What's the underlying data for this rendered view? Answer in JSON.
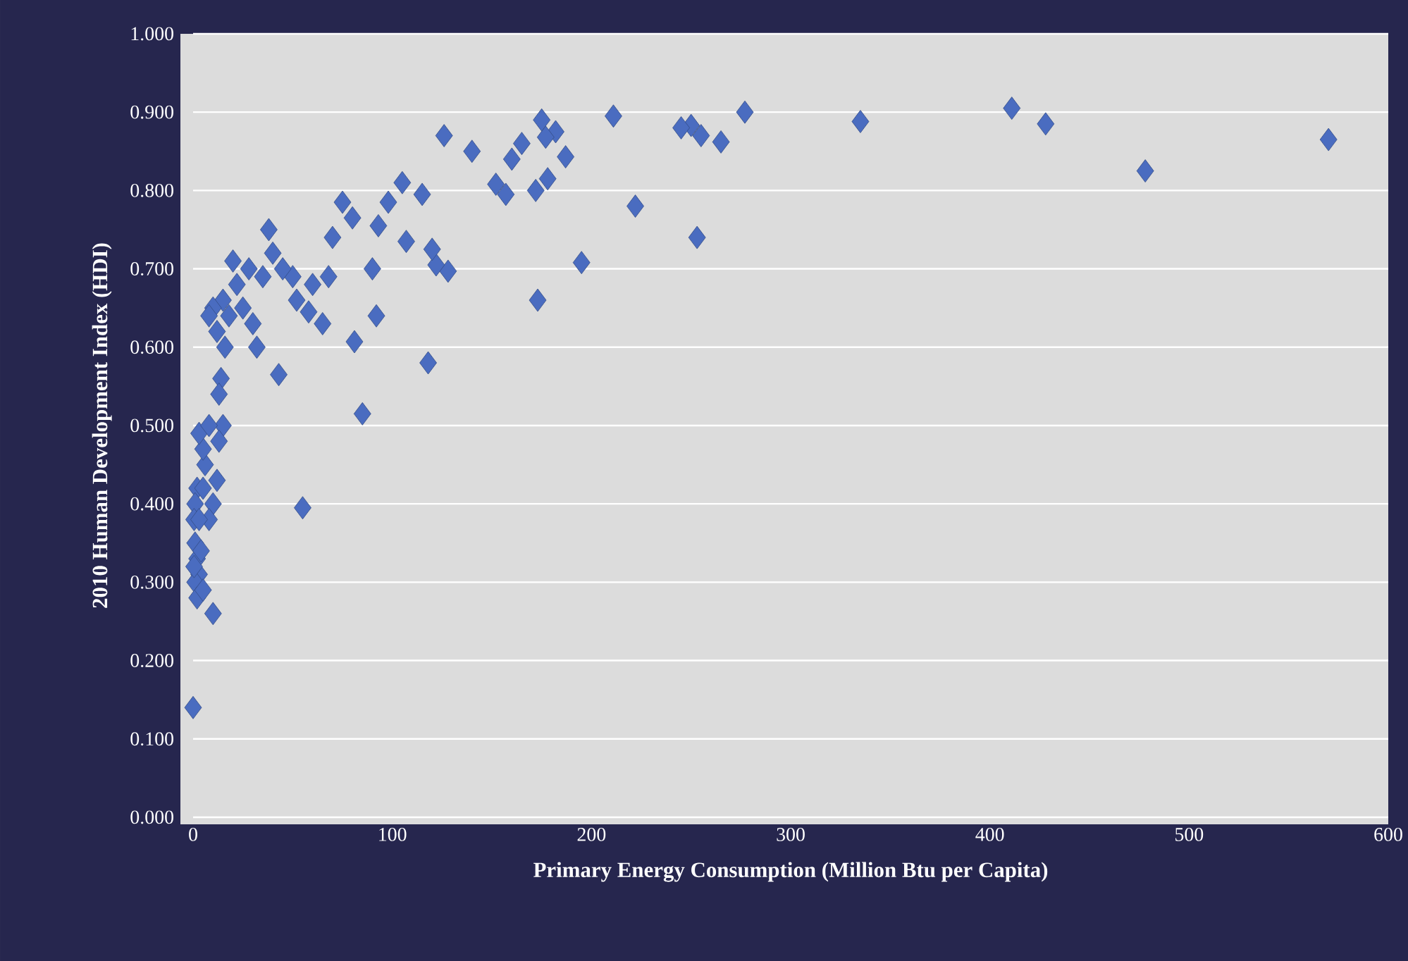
{
  "chart_data": {
    "type": "scatter",
    "xlabel": "Primary Energy Consumption (Million Btu per Capita)",
    "ylabel": "2010 Human Development Index (HDI)",
    "xlim": [
      0,
      600
    ],
    "xticks": [
      0,
      100,
      200,
      300,
      400,
      500,
      600
    ],
    "ylim": [
      0,
      1
    ],
    "yticks": [
      {
        "value": 0,
        "label": "0.000"
      },
      {
        "value": 0.1,
        "label": "0.100"
      },
      {
        "value": 0.2,
        "label": "0.200"
      },
      {
        "value": 0.3,
        "label": "0.300"
      },
      {
        "value": 0.4,
        "label": "0.400"
      },
      {
        "value": 0.5,
        "label": "0.500"
      },
      {
        "value": 0.6,
        "label": "0.600"
      },
      {
        "value": 0.7,
        "label": "0.700"
      },
      {
        "value": 0.8,
        "label": "0.800"
      },
      {
        "value": 0.9,
        "label": "0.900"
      },
      {
        "value": 1,
        "label": "1.000"
      }
    ],
    "grid": "y",
    "marker": "diamond",
    "series": [
      {
        "color": "#4a6cc0",
        "x": [
          570,
          478,
          428,
          411,
          335,
          277,
          265,
          255,
          250,
          245,
          253,
          222,
          211,
          195,
          187,
          182,
          177,
          175,
          172,
          178,
          173,
          165,
          160,
          157,
          152,
          140,
          126,
          128,
          122,
          120,
          118,
          115,
          105,
          107,
          98,
          93,
          90,
          92,
          85,
          81,
          80,
          75,
          70,
          68,
          65,
          60,
          58,
          55,
          52,
          50,
          45,
          43,
          40,
          38,
          35,
          32,
          30,
          28,
          25,
          22,
          20,
          18,
          16,
          15,
          14,
          13,
          12,
          10,
          8,
          15,
          13,
          12,
          10,
          8,
          6,
          5,
          3,
          2,
          1,
          0.5,
          1,
          2,
          3,
          1,
          2,
          5,
          10,
          0,
          8,
          5,
          3,
          0.5,
          4
        ],
        "values": [
          0.865,
          0.825,
          0.885,
          0.905,
          0.888,
          0.9,
          0.862,
          0.87,
          0.883,
          0.88,
          0.74,
          0.78,
          0.895,
          0.708,
          0.843,
          0.875,
          0.868,
          0.89,
          0.8,
          0.815,
          0.66,
          0.86,
          0.84,
          0.795,
          0.808,
          0.85,
          0.87,
          0.697,
          0.705,
          0.725,
          0.58,
          0.795,
          0.81,
          0.735,
          0.785,
          0.755,
          0.7,
          0.64,
          0.515,
          0.607,
          0.765,
          0.785,
          0.74,
          0.69,
          0.63,
          0.68,
          0.645,
          0.395,
          0.66,
          0.69,
          0.7,
          0.565,
          0.72,
          0.75,
          0.69,
          0.6,
          0.63,
          0.7,
          0.65,
          0.68,
          0.71,
          0.64,
          0.6,
          0.66,
          0.56,
          0.54,
          0.62,
          0.65,
          0.64,
          0.5,
          0.48,
          0.43,
          0.4,
          0.38,
          0.45,
          0.47,
          0.49,
          0.42,
          0.4,
          0.38,
          0.35,
          0.33,
          0.31,
          0.3,
          0.28,
          0.29,
          0.26,
          0.14,
          0.5,
          0.42,
          0.38,
          0.32,
          0.34
        ]
      }
    ]
  }
}
